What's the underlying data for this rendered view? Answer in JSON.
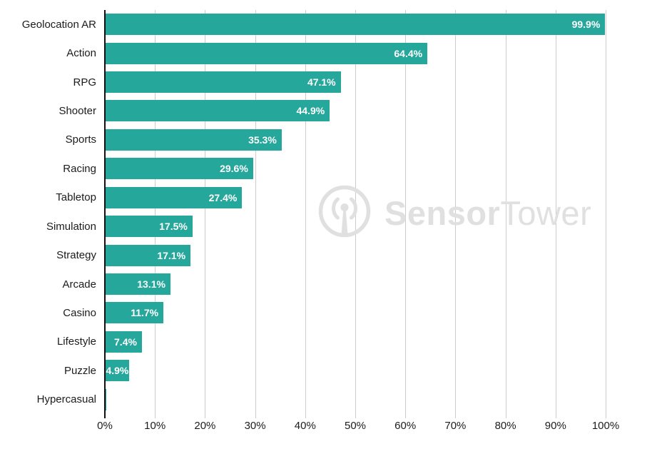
{
  "chart_data": {
    "type": "bar",
    "orientation": "horizontal",
    "title": "",
    "xlabel": "",
    "ylabel": "",
    "xlim": [
      0,
      100
    ],
    "grid": true,
    "categories": [
      "Geolocation AR",
      "Action",
      "RPG",
      "Shooter",
      "Sports",
      "Racing",
      "Tabletop",
      "Simulation",
      "Strategy",
      "Arcade",
      "Casino",
      "Lifestyle",
      "Puzzle",
      "Hypercasual"
    ],
    "values": [
      99.9,
      64.4,
      47.1,
      44.9,
      35.3,
      29.6,
      27.4,
      17.5,
      17.1,
      13.1,
      11.7,
      7.4,
      4.9,
      0.3
    ],
    "value_labels": [
      "99.9%",
      "64.4%",
      "47.1%",
      "44.9%",
      "35.3%",
      "29.6%",
      "27.4%",
      "17.5%",
      "17.1%",
      "13.1%",
      "11.7%",
      "7.4%",
      "4.9%",
      ""
    ],
    "x_tick_values": [
      0,
      10,
      20,
      30,
      40,
      50,
      60,
      70,
      80,
      90,
      100
    ],
    "x_tick_labels": [
      "0%",
      "10%",
      "20%",
      "30%",
      "40%",
      "50%",
      "60%",
      "70%",
      "80%",
      "90%",
      "100%"
    ],
    "colors": {
      "bar": "#26a79b",
      "gridline": "#cccccc",
      "axis_line": "#111111",
      "value_label_text": "#ffffff",
      "tick_text": "#1c1c1c",
      "watermark": "#e0e0e0"
    }
  },
  "watermark": {
    "brand_bold": "Sensor",
    "brand_light": "Tower"
  }
}
